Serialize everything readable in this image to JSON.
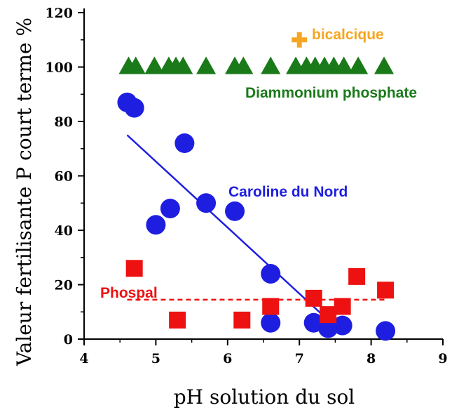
{
  "chart_data": {
    "type": "scatter",
    "title": "",
    "xlabel": "pH solution du sol",
    "ylabel": "Valeur fertilisante P court terme %",
    "xlim": [
      4,
      9
    ],
    "ylim": [
      0,
      120
    ],
    "xticks": [
      4,
      5,
      6,
      7,
      8,
      9
    ],
    "yticks": [
      0,
      20,
      40,
      60,
      80,
      100,
      120
    ],
    "grid": false,
    "series": [
      {
        "name": "Diammonium phosphate",
        "marker": "triangle",
        "color": "#1a7a1a",
        "x": [
          4.62,
          4.72,
          4.98,
          5.18,
          5.28,
          5.38,
          5.7,
          6.1,
          6.22,
          6.6,
          6.95,
          7.1,
          7.22,
          7.35,
          7.48,
          7.62,
          7.82,
          8.18
        ],
        "y": [
          100,
          100,
          100,
          100,
          100,
          100,
          100,
          100,
          100,
          100,
          100,
          100,
          100,
          100,
          100,
          100,
          100,
          100
        ]
      },
      {
        "name": "bicalcique",
        "marker": "plus",
        "color": "#f5a623",
        "x": [
          7.0
        ],
        "y": [
          110
        ]
      },
      {
        "name": "Caroline du Nord",
        "marker": "circle",
        "color": "#1e1ee0",
        "x": [
          4.6,
          4.7,
          5.0,
          5.2,
          5.4,
          5.7,
          6.1,
          6.6,
          6.6,
          7.2,
          7.4,
          7.6,
          8.2
        ],
        "y": [
          87,
          85,
          42,
          48,
          72,
          50,
          47,
          24,
          6,
          6,
          4,
          5,
          3
        ],
        "trendline": {
          "x": [
            4.6,
            7.4
          ],
          "y": [
            75,
            7
          ]
        }
      },
      {
        "name": "Phospal",
        "marker": "square",
        "color": "#ee1111",
        "x": [
          4.7,
          5.3,
          6.2,
          6.6,
          7.2,
          7.4,
          7.6,
          7.8,
          8.2
        ],
        "y": [
          26,
          7,
          7,
          12,
          15,
          9,
          12,
          23,
          18
        ],
        "trendline": {
          "x": [
            4.6,
            8.2
          ],
          "y": [
            14.5,
            14.5
          ],
          "style": "dashed"
        }
      }
    ],
    "annotations": [
      {
        "text": "bicalcique",
        "series": "bicalcique"
      },
      {
        "text": "Diammonium phosphate",
        "series": "Diammonium phosphate"
      },
      {
        "text": "Caroline du Nord",
        "series": "Caroline du Nord"
      },
      {
        "text": "Phospal",
        "series": "Phospal"
      }
    ]
  }
}
